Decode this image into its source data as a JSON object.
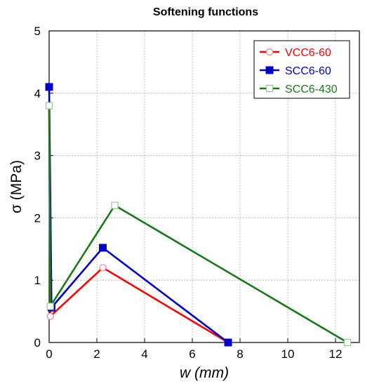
{
  "chart_data": {
    "type": "line",
    "title": "Softening functions",
    "xlabel": "w (mm)",
    "ylabel": "σ (MPa)",
    "xlim": [
      0,
      13
    ],
    "ylim": [
      0,
      5
    ],
    "xticks": [
      "0",
      "2",
      "4",
      "6",
      "8",
      "10",
      "12"
    ],
    "yticks": [
      "0",
      "1",
      "2",
      "3",
      "4",
      "5"
    ],
    "grid": true,
    "legend_position": "top-right",
    "series": [
      {
        "name": "VCC6-60",
        "color": "#ff0000",
        "marker": "circle-open",
        "x": [
          0,
          0.05,
          2.25,
          7.5
        ],
        "y": [
          3.8,
          0.42,
          1.2,
          0
        ]
      },
      {
        "name": "SCC6-60",
        "color": "#0000cc",
        "marker": "square-filled",
        "x": [
          0,
          0.1,
          2.25,
          7.5
        ],
        "y": [
          4.1,
          0.56,
          1.52,
          0
        ]
      },
      {
        "name": "SCC6-430",
        "color": "#1a7a1a",
        "marker": "square-open",
        "x": [
          0,
          0.05,
          2.75,
          12.5
        ],
        "y": [
          3.8,
          0.58,
          2.2,
          0
        ]
      }
    ]
  }
}
